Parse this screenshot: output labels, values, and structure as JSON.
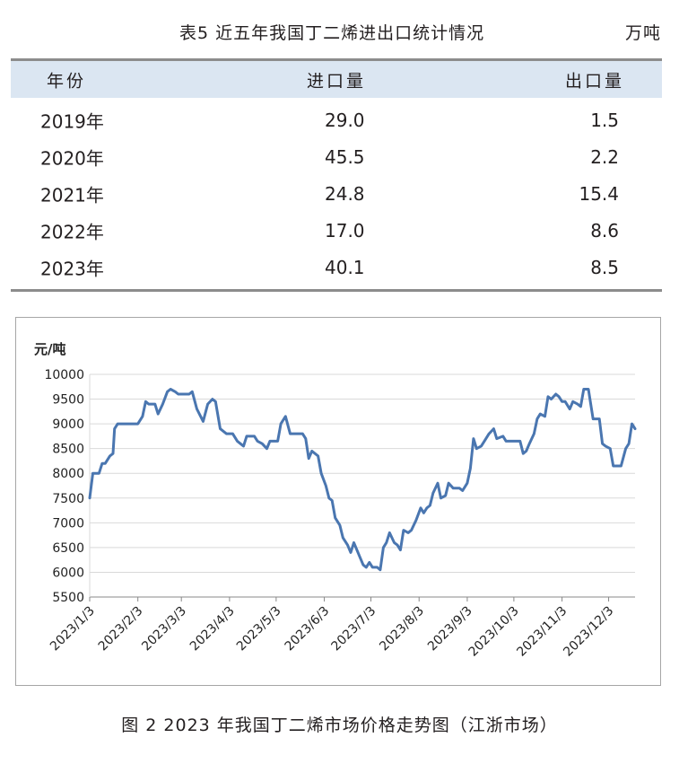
{
  "table": {
    "title": "表5 近五年我国丁二烯进出口统计情况",
    "unit": "万吨",
    "columns": [
      "年份",
      "进口量",
      "出口量"
    ],
    "rows": [
      {
        "year": "2019年",
        "import": "29.0",
        "export": "1.5"
      },
      {
        "year": "2020年",
        "import": "45.5",
        "export": "2.2"
      },
      {
        "year": "2021年",
        "import": "24.8",
        "export": "15.4"
      },
      {
        "year": "2022年",
        "import": "17.0",
        "export": "8.6"
      },
      {
        "year": "2023年",
        "import": "40.1",
        "export": "8.5"
      }
    ]
  },
  "chart_data": {
    "type": "line",
    "title": "",
    "ylabel": "元/吨",
    "xlabel": "",
    "ylim": [
      5500,
      10000
    ],
    "y_ticks": [
      5500,
      6000,
      6500,
      7000,
      7500,
      8000,
      8500,
      9000,
      9500,
      10000
    ],
    "x_ticks": [
      "2023/1/3",
      "2023/2/3",
      "2023/3/3",
      "2023/4/3",
      "2023/5/3",
      "2023/6/3",
      "2023/7/3",
      "2023/8/3",
      "2023/9/3",
      "2023/10/3",
      "2023/11/3",
      "2023/12/3"
    ],
    "grid": true,
    "legend": "none",
    "series_color": "#4a76b0",
    "series": [
      {
        "points": [
          [
            "2023-01-03",
            7500
          ],
          [
            "2023-01-05",
            8000
          ],
          [
            "2023-01-09",
            8000
          ],
          [
            "2023-01-11",
            8200
          ],
          [
            "2023-01-13",
            8200
          ],
          [
            "2023-01-16",
            8350
          ],
          [
            "2023-01-18",
            8400
          ],
          [
            "2023-01-19",
            8900
          ],
          [
            "2023-01-21",
            9000
          ],
          [
            "2023-01-31",
            9000
          ],
          [
            "2023-02-03",
            9000
          ],
          [
            "2023-02-06",
            9150
          ],
          [
            "2023-02-08",
            9450
          ],
          [
            "2023-02-10",
            9400
          ],
          [
            "2023-02-14",
            9400
          ],
          [
            "2023-02-16",
            9200
          ],
          [
            "2023-02-19",
            9400
          ],
          [
            "2023-02-22",
            9650
          ],
          [
            "2023-02-24",
            9700
          ],
          [
            "2023-02-27",
            9650
          ],
          [
            "2023-03-01",
            9600
          ],
          [
            "2023-03-03",
            9600
          ],
          [
            "2023-03-08",
            9600
          ],
          [
            "2023-03-10",
            9650
          ],
          [
            "2023-03-13",
            9300
          ],
          [
            "2023-03-17",
            9050
          ],
          [
            "2023-03-20",
            9400
          ],
          [
            "2023-03-23",
            9500
          ],
          [
            "2023-03-25",
            9450
          ],
          [
            "2023-03-28",
            8900
          ],
          [
            "2023-04-01",
            8800
          ],
          [
            "2023-04-05",
            8800
          ],
          [
            "2023-04-08",
            8650
          ],
          [
            "2023-04-12",
            8550
          ],
          [
            "2023-04-14",
            8750
          ],
          [
            "2023-04-19",
            8750
          ],
          [
            "2023-04-21",
            8650
          ],
          [
            "2023-04-24",
            8600
          ],
          [
            "2023-04-27",
            8500
          ],
          [
            "2023-04-29",
            8650
          ],
          [
            "2023-05-04",
            8650
          ],
          [
            "2023-05-06",
            9000
          ],
          [
            "2023-05-09",
            9150
          ],
          [
            "2023-05-12",
            8800
          ],
          [
            "2023-05-15",
            8800
          ],
          [
            "2023-05-20",
            8800
          ],
          [
            "2023-05-22",
            8700
          ],
          [
            "2023-05-24",
            8300
          ],
          [
            "2023-05-26",
            8450
          ],
          [
            "2023-05-30",
            8350
          ],
          [
            "2023-06-01",
            8000
          ],
          [
            "2023-06-04",
            7750
          ],
          [
            "2023-06-06",
            7500
          ],
          [
            "2023-06-08",
            7450
          ],
          [
            "2023-06-10",
            7100
          ],
          [
            "2023-06-13",
            6950
          ],
          [
            "2023-06-15",
            6700
          ],
          [
            "2023-06-18",
            6550
          ],
          [
            "2023-06-20",
            6400
          ],
          [
            "2023-06-22",
            6600
          ],
          [
            "2023-06-24",
            6450
          ],
          [
            "2023-06-26",
            6300
          ],
          [
            "2023-06-28",
            6150
          ],
          [
            "2023-06-30",
            6100
          ],
          [
            "2023-07-02",
            6200
          ],
          [
            "2023-07-04",
            6100
          ],
          [
            "2023-07-07",
            6100
          ],
          [
            "2023-07-09",
            6050
          ],
          [
            "2023-07-11",
            6500
          ],
          [
            "2023-07-13",
            6600
          ],
          [
            "2023-07-15",
            6800
          ],
          [
            "2023-07-18",
            6600
          ],
          [
            "2023-07-20",
            6550
          ],
          [
            "2023-07-22",
            6450
          ],
          [
            "2023-07-24",
            6850
          ],
          [
            "2023-07-27",
            6800
          ],
          [
            "2023-07-29",
            6850
          ],
          [
            "2023-08-01",
            7050
          ],
          [
            "2023-08-04",
            7300
          ],
          [
            "2023-08-06",
            7200
          ],
          [
            "2023-08-08",
            7300
          ],
          [
            "2023-08-10",
            7350
          ],
          [
            "2023-08-12",
            7600
          ],
          [
            "2023-08-15",
            7800
          ],
          [
            "2023-08-17",
            7500
          ],
          [
            "2023-08-20",
            7550
          ],
          [
            "2023-08-22",
            7800
          ],
          [
            "2023-08-25",
            7700
          ],
          [
            "2023-08-29",
            7700
          ],
          [
            "2023-08-31",
            7650
          ],
          [
            "2023-09-03",
            7800
          ],
          [
            "2023-09-05",
            8100
          ],
          [
            "2023-09-07",
            8700
          ],
          [
            "2023-09-09",
            8500
          ],
          [
            "2023-09-12",
            8550
          ],
          [
            "2023-09-14",
            8650
          ],
          [
            "2023-09-17",
            8800
          ],
          [
            "2023-09-20",
            8900
          ],
          [
            "2023-09-22",
            8700
          ],
          [
            "2023-09-26",
            8750
          ],
          [
            "2023-09-28",
            8650
          ],
          [
            "2023-10-03",
            8650
          ],
          [
            "2023-10-07",
            8650
          ],
          [
            "2023-10-09",
            8400
          ],
          [
            "2023-10-11",
            8450
          ],
          [
            "2023-10-13",
            8600
          ],
          [
            "2023-10-16",
            8800
          ],
          [
            "2023-10-18",
            9100
          ],
          [
            "2023-10-20",
            9200
          ],
          [
            "2023-10-23",
            9150
          ],
          [
            "2023-10-25",
            9550
          ],
          [
            "2023-10-27",
            9500
          ],
          [
            "2023-10-30",
            9600
          ],
          [
            "2023-11-01",
            9550
          ],
          [
            "2023-11-03",
            9450
          ],
          [
            "2023-11-05",
            9450
          ],
          [
            "2023-11-08",
            9300
          ],
          [
            "2023-11-10",
            9450
          ],
          [
            "2023-11-13",
            9400
          ],
          [
            "2023-11-15",
            9350
          ],
          [
            "2023-11-17",
            9700
          ],
          [
            "2023-11-20",
            9700
          ],
          [
            "2023-11-23",
            9100
          ],
          [
            "2023-11-27",
            9100
          ],
          [
            "2023-11-29",
            8600
          ],
          [
            "2023-12-01",
            8550
          ],
          [
            "2023-12-04",
            8500
          ],
          [
            "2023-12-06",
            8150
          ],
          [
            "2023-12-11",
            8150
          ],
          [
            "2023-12-14",
            8500
          ],
          [
            "2023-12-16",
            8600
          ],
          [
            "2023-12-18",
            9000
          ],
          [
            "2023-12-20",
            8900
          ]
        ]
      }
    ]
  },
  "figure_caption": "图 2 2023 年我国丁二烯市场价格走势图（江浙市场）"
}
